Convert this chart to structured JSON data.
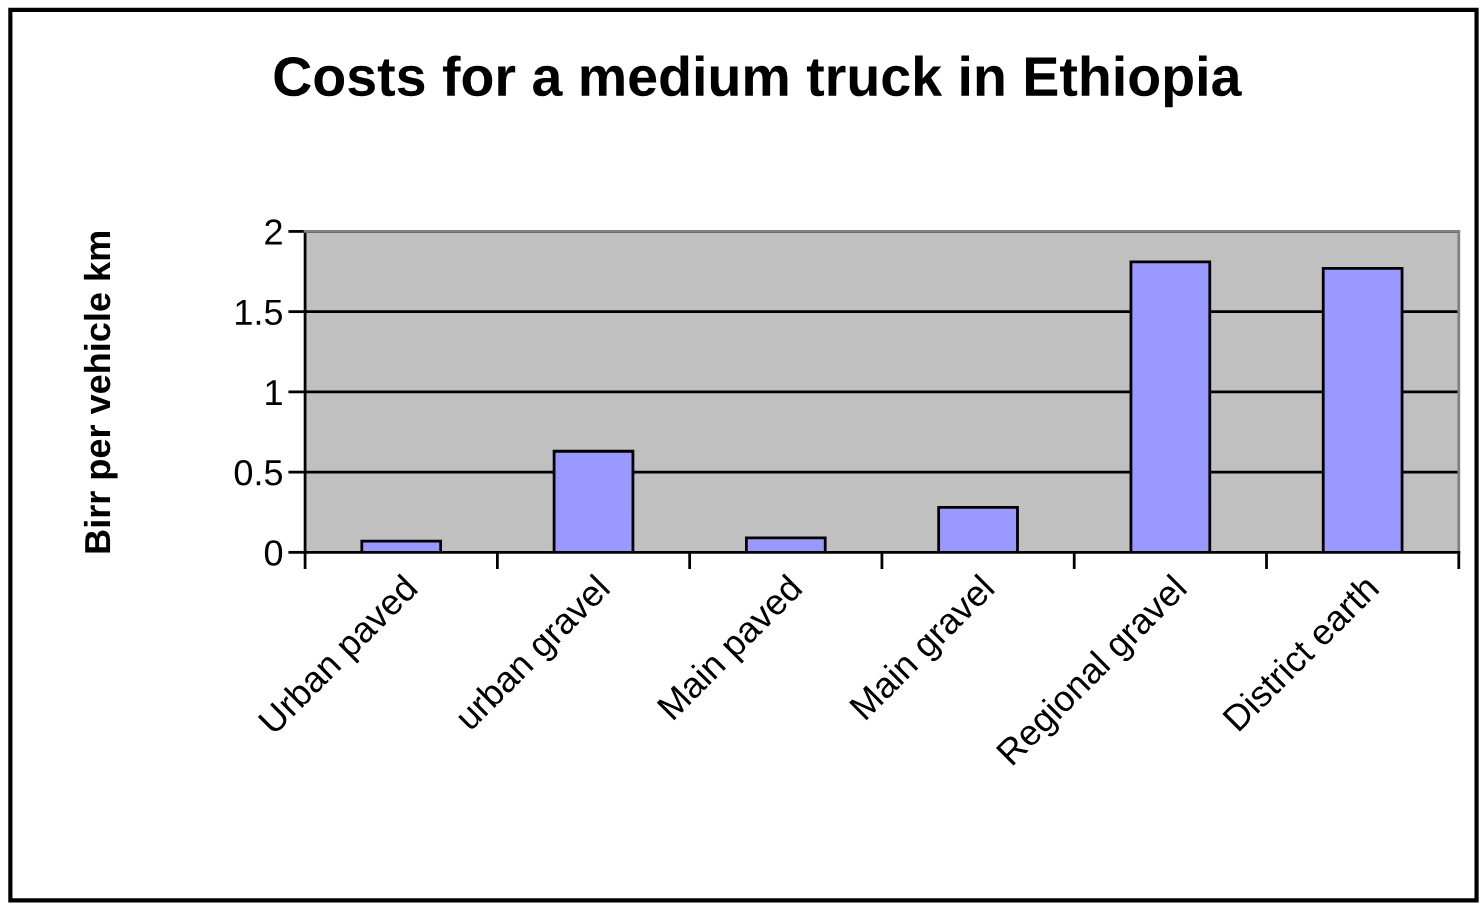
{
  "chart_data": {
    "type": "bar",
    "title": "Costs for a medium truck in Ethiopia",
    "ylabel": "Birr per vehicle km",
    "categories": [
      "Urban paved",
      "urban gravel",
      "Main paved",
      "Main gravel",
      "Regional gravel",
      "District earth"
    ],
    "values": [
      0.07,
      0.63,
      0.09,
      0.28,
      1.81,
      1.77
    ],
    "color": "#9999ff",
    "ylim": [
      0,
      2
    ],
    "yticks": [
      0,
      0.5,
      1,
      1.5,
      2
    ],
    "grid": "y",
    "legend": false
  }
}
